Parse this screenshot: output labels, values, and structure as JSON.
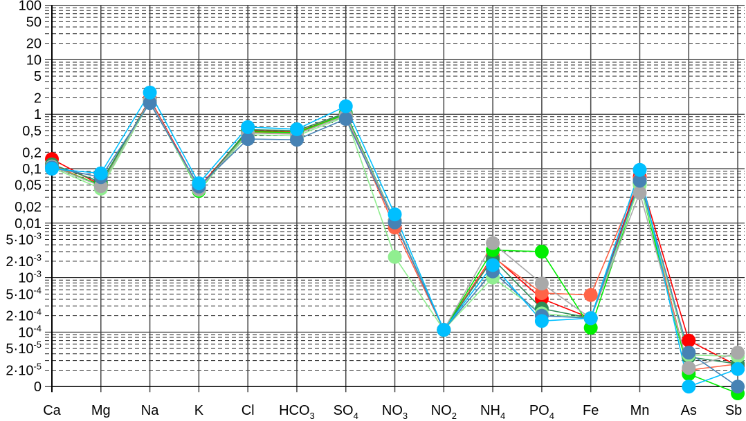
{
  "chart_data": {
    "type": "line",
    "title": "",
    "xlabel": "",
    "ylabel": "",
    "yscale": "log",
    "ylim": [
      1e-05,
      100
    ],
    "grid": true,
    "legend": "none",
    "categories": [
      {
        "text": "Ca",
        "sub": ""
      },
      {
        "text": "Mg",
        "sub": ""
      },
      {
        "text": "Na",
        "sub": ""
      },
      {
        "text": "K",
        "sub": ""
      },
      {
        "text": "Cl",
        "sub": ""
      },
      {
        "text": "HCO",
        "sub": "3"
      },
      {
        "text": "SO",
        "sub": "4"
      },
      {
        "text": "NO",
        "sub": "3"
      },
      {
        "text": "NO",
        "sub": "2"
      },
      {
        "text": "NH",
        "sub": "4"
      },
      {
        "text": "PO",
        "sub": "4"
      },
      {
        "text": "Fe",
        "sub": ""
      },
      {
        "text": "Mn",
        "sub": ""
      },
      {
        "text": "As",
        "sub": ""
      },
      {
        "text": "Sb",
        "sub": ""
      }
    ],
    "y_ticks": [
      {
        "value": 100,
        "base": "100",
        "exp": ""
      },
      {
        "value": 50,
        "base": "50",
        "exp": ""
      },
      {
        "value": 20,
        "base": "20",
        "exp": ""
      },
      {
        "value": 10,
        "base": "10",
        "exp": ""
      },
      {
        "value": 5,
        "base": "5",
        "exp": ""
      },
      {
        "value": 2,
        "base": "2",
        "exp": ""
      },
      {
        "value": 1,
        "base": "1",
        "exp": ""
      },
      {
        "value": 0.5,
        "base": "0,5",
        "exp": ""
      },
      {
        "value": 0.2,
        "base": "0,2",
        "exp": ""
      },
      {
        "value": 0.1,
        "base": "0,1",
        "exp": ""
      },
      {
        "value": 0.05,
        "base": "0,05",
        "exp": ""
      },
      {
        "value": 0.02,
        "base": "0,02",
        "exp": ""
      },
      {
        "value": 0.01,
        "base": "0,01",
        "exp": ""
      },
      {
        "value": 0.005,
        "base": "5·10",
        "exp": "-3"
      },
      {
        "value": 0.002,
        "base": "2·10",
        "exp": "-3"
      },
      {
        "value": 0.001,
        "base": "10",
        "exp": "-3"
      },
      {
        "value": 0.0005,
        "base": "5·10",
        "exp": "-4"
      },
      {
        "value": 0.0002,
        "base": "2·10",
        "exp": "-4"
      },
      {
        "value": 0.0001,
        "base": "10",
        "exp": "-4"
      },
      {
        "value": 5e-05,
        "base": "5·10",
        "exp": "-5"
      },
      {
        "value": 2e-05,
        "base": "2·10",
        "exp": "-5"
      },
      {
        "value": 1e-05,
        "base": "0",
        "exp": ""
      }
    ],
    "series": [
      {
        "name": "red",
        "color": "#ff0000",
        "values": [
          0.15,
          0.05,
          1.9,
          0.045,
          0.5,
          0.47,
          1.0,
          0.011,
          0.00011,
          0.0025,
          0.00041,
          0.00018,
          0.07,
          7e-05,
          2.4e-05
        ]
      },
      {
        "name": "tomato",
        "color": "#ff6347",
        "values": [
          0.12,
          0.048,
          1.8,
          0.043,
          0.47,
          0.45,
          0.95,
          0.0083,
          0.00011,
          0.0024,
          0.00052,
          0.00048,
          0.065,
          2e-05,
          2.6e-05
        ]
      },
      {
        "name": "seagreen",
        "color": "#2e8b57",
        "values": [
          0.12,
          0.057,
          1.8,
          0.042,
          0.52,
          0.5,
          1.05,
          0.011,
          0.00011,
          0.0022,
          0.00027,
          0.00018,
          0.06,
          3.5e-05,
          2.6e-05
        ]
      },
      {
        "name": "lime",
        "color": "#00ee00",
        "values": [
          0.11,
          0.05,
          1.8,
          0.039,
          0.48,
          0.46,
          1.0,
          0.011,
          0.00011,
          0.0032,
          0.003,
          0.00012,
          0.054,
          1.7e-05,
          7.5e-06
        ]
      },
      {
        "name": "lightgreen",
        "color": "#90ee90",
        "values": [
          0.105,
          0.043,
          1.7,
          0.041,
          0.42,
          0.4,
          0.9,
          0.0024,
          0.00011,
          0.001,
          0.00022,
          0.00018,
          0.05,
          3.8e-05,
          3.6e-05
        ]
      },
      {
        "name": "gray",
        "color": "#a9a9a9",
        "values": [
          0.11,
          0.048,
          1.8,
          0.042,
          0.45,
          0.43,
          0.95,
          0.011,
          0.00011,
          0.0043,
          0.00078,
          0.00018,
          0.036,
          2.2e-05,
          4.2e-05
        ]
      },
      {
        "name": "steelblue",
        "color": "#4682b4",
        "values": [
          0.105,
          0.07,
          1.6,
          0.047,
          0.35,
          0.34,
          0.82,
          0.0103,
          0.00011,
          0.0013,
          0.0002,
          0.00018,
          0.06,
          4.2e-05,
          1e-05
        ]
      },
      {
        "name": "deepskyblue",
        "color": "#00bfff",
        "values": [
          0.1,
          0.082,
          2.5,
          0.054,
          0.58,
          0.53,
          1.4,
          0.0145,
          0.00011,
          0.0017,
          0.00016,
          0.00018,
          0.095,
          1e-05,
          2.1e-05
        ]
      }
    ]
  }
}
